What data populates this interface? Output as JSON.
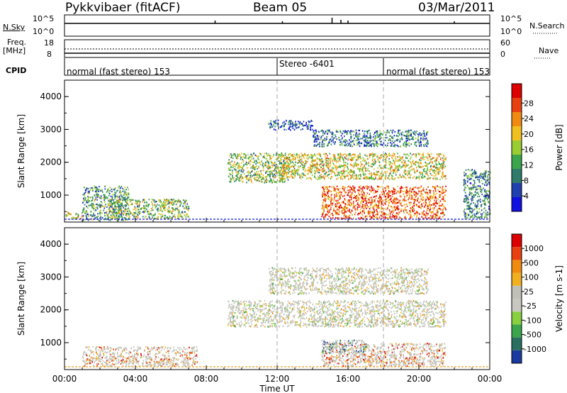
{
  "header": {
    "station": "Pykkvibaer (fitACF)",
    "beam": "Beam 05",
    "date": "03/Mar/2011"
  },
  "status_panel": {
    "nsky_label": "N.Sky",
    "nsky_ticks": [
      "10^5",
      "10^0"
    ],
    "nsearch_label": "N.Search",
    "nsearch_ticks": [
      "10^5",
      "10^0"
    ],
    "freq_label": "Freq.",
    "freq_unit": "[MHz]",
    "freq_ticks": [
      "18",
      "8"
    ],
    "nave_label": "Nave",
    "nave_ticks": [
      "60",
      "0"
    ],
    "cpid_label": "CPID",
    "cpid_segments": [
      {
        "start": "00:00",
        "end": "12:00",
        "text": "normal (fast stereo) 153"
      },
      {
        "start": "12:00",
        "end": "18:00",
        "text": "Stereo -6401"
      },
      {
        "start": "18:00",
        "end": "24:00",
        "text": "normal (fast stereo) 153"
      }
    ]
  },
  "chart_data": [
    {
      "type": "heatmap",
      "title": "Power",
      "ylabel": "Slant Range [km]",
      "ylim": [
        180,
        4500
      ],
      "yticks": [
        "1000",
        "2000",
        "3000",
        "4000"
      ],
      "colorbar_label": "Power [dB]",
      "colorbar_ticks": [
        "4",
        "8",
        "12",
        "16",
        "20",
        "24",
        "28"
      ],
      "colorbar_colors": [
        "#1010e0",
        "#2040b0",
        "#2f7c6a",
        "#3aa54a",
        "#9acd32",
        "#f0c020",
        "#f08a10",
        "#e84010",
        "#dd0000"
      ],
      "scatter_regions": [
        {
          "t0": 1.0,
          "t1": 3.6,
          "r0": 250,
          "r1": 1300,
          "level": 0.35
        },
        {
          "t0": 2.4,
          "t1": 7.0,
          "r0": 300,
          "r1": 900,
          "level": 0.45
        },
        {
          "t0": 9.2,
          "t1": 12.6,
          "r0": 1400,
          "r1": 2300,
          "level": 0.45
        },
        {
          "t0": 12.0,
          "t1": 21.5,
          "r0": 1500,
          "r1": 2300,
          "level": 0.55
        },
        {
          "t0": 14.5,
          "t1": 21.5,
          "r0": 300,
          "r1": 1300,
          "level": 0.8
        },
        {
          "t0": 11.5,
          "t1": 14.0,
          "r0": 3000,
          "r1": 3300,
          "level": 0.2
        },
        {
          "t0": 14.0,
          "t1": 20.5,
          "r0": 2500,
          "r1": 3000,
          "level": 0.25
        },
        {
          "t0": 0.0,
          "t1": 1.0,
          "r0": 300,
          "r1": 500,
          "level": 0.6
        },
        {
          "t0": 22.5,
          "t1": 24.0,
          "r0": 300,
          "r1": 1800,
          "level": 0.3
        }
      ]
    },
    {
      "type": "heatmap",
      "title": "Velocity",
      "xlabel": "Time UT",
      "ylabel": "Slant Range [km]",
      "xlim": [
        0,
        24
      ],
      "xticks": [
        "00:00",
        "04:00",
        "08:00",
        "12:00",
        "16:00",
        "20:00",
        "00:00"
      ],
      "ylim": [
        180,
        4500
      ],
      "yticks": [
        "1000",
        "2000",
        "3000",
        "4000"
      ],
      "colorbar_label": "Velocity [m s-1]",
      "colorbar_ticks": [
        "1000",
        "500",
        "100",
        "25",
        "-25",
        "-100",
        "-500",
        "-1000"
      ],
      "colorbar_colors": [
        "#1a3aa0",
        "#2a7060",
        "#3aa54a",
        "#88d040",
        "#c8c8c0",
        "#c0c0b8",
        "#f0b020",
        "#f08a10",
        "#e84010",
        "#dd0000"
      ],
      "scatter_regions": [
        {
          "t0": 1.0,
          "t1": 7.5,
          "r0": 300,
          "r1": 900,
          "level": 0.7
        },
        {
          "t0": 9.2,
          "t1": 21.5,
          "r0": 1500,
          "r1": 2300,
          "level": 0.5
        },
        {
          "t0": 14.5,
          "t1": 21.5,
          "r0": 300,
          "r1": 1000,
          "level": 0.75
        },
        {
          "t0": 14.5,
          "t1": 17.0,
          "r0": 700,
          "r1": 1100,
          "level": 0.2
        },
        {
          "t0": 11.5,
          "t1": 20.5,
          "r0": 2500,
          "r1": 3300,
          "level": 0.5
        }
      ]
    }
  ]
}
